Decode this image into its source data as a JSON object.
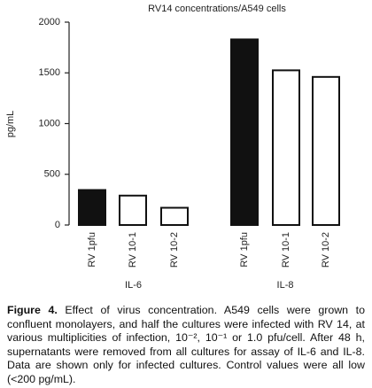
{
  "chart_data": {
    "type": "bar",
    "title": "RV14 concentrations/A549 cells",
    "y_label": "pg/mL",
    "categories": [
      "RV 1pfu",
      "RV 10-1",
      "RV 10-2",
      "RV 1pfu",
      "RV 10-1",
      "RV 10-2"
    ],
    "groups": [
      "IL-6",
      "IL-8"
    ],
    "values": [
      345,
      290,
      170,
      1830,
      1525,
      1460
    ],
    "colors": [
      "#111111",
      "#ffffff",
      "#ffffff",
      "#111111",
      "#ffffff",
      "#ffffff"
    ],
    "ylim": [
      0,
      2000
    ],
    "yticks": [
      0,
      500,
      1000,
      1500,
      2000
    ]
  },
  "caption": {
    "label": "Figure 4.",
    "text": "Effect of virus concentration. A549 cells were grown to confluent monolayers, and half the cultures were infected with RV 14, at various multiplicities of infection, 10⁻², 10⁻¹ or 1.0 pfu/cell. After 48 h, supernatants were removed from all cultures for assay of IL-6 and IL-8. Data are shown only for infected cultures. Control values were all low (<200 pg/mL)."
  }
}
